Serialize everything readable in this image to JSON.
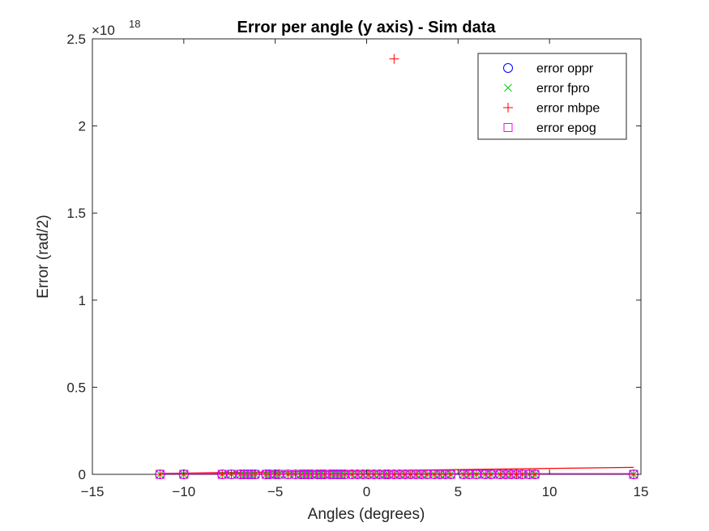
{
  "chart_data": {
    "type": "scatter",
    "title": "Error per angle (y axis)  - Sim data",
    "xlabel": "Angles (degrees)",
    "ylabel": "Error (rad/2)",
    "xlim": [
      -15,
      15
    ],
    "ylim": [
      0,
      2.5
    ],
    "y_exponent_label": "×10",
    "y_exponent": "18",
    "xticks": [
      -15,
      -10,
      -5,
      0,
      5,
      10,
      15
    ],
    "xtick_labels": [
      "−15",
      "−10",
      "−5",
      "0",
      "5",
      "10",
      "15"
    ],
    "yticks": [
      0,
      0.5,
      1,
      1.5,
      2,
      2.5
    ],
    "ytick_labels": [
      "0",
      "0.5",
      "1",
      "1.5",
      "2",
      "2.5"
    ],
    "legend_position": "top-right",
    "grid": false,
    "x": [
      -11.3,
      -10.0,
      -7.9,
      -7.4,
      -6.9,
      -6.7,
      -6.5,
      -6.3,
      -6.1,
      -5.5,
      -5.3,
      -5.0,
      -4.8,
      -4.3,
      -3.9,
      -3.6,
      -3.4,
      -3.2,
      -3.0,
      -2.7,
      -2.5,
      -2.3,
      -2.0,
      -1.8,
      -1.6,
      -1.4,
      -1.2,
      -0.8,
      -0.5,
      -0.2,
      0.1,
      0.4,
      0.7,
      1.0,
      1.2,
      1.5,
      1.8,
      2.1,
      2.4,
      2.7,
      3.0,
      3.3,
      3.7,
      4.0,
      4.3,
      4.6,
      5.3,
      5.6,
      6.0,
      6.5,
      6.8,
      7.3,
      7.6,
      7.9,
      8.2,
      8.5,
      8.9,
      9.2,
      14.6
    ],
    "series": [
      {
        "name": "error oppr",
        "marker": "circle",
        "color": "#0000ff",
        "values": "zero"
      },
      {
        "name": "error fpro",
        "marker": "x",
        "color": "#00cc00",
        "values": "zero"
      },
      {
        "name": "error mbpe",
        "marker": "plus",
        "color": "#ff0000",
        "values": "zero",
        "outlier": {
          "x": 1.5,
          "y": 2.385
        }
      },
      {
        "name": "error epog",
        "marker": "square",
        "color": "#ff00ff",
        "values": "zero"
      }
    ],
    "fit_lines": [
      {
        "color": "#ff0000",
        "x": [
          -11.3,
          14.6
        ],
        "y": [
          0.005,
          0.04
        ]
      },
      {
        "color": "#ff00ff",
        "x": [
          -11.3,
          14.6
        ],
        "y": [
          0.004,
          0.004
        ]
      }
    ]
  }
}
